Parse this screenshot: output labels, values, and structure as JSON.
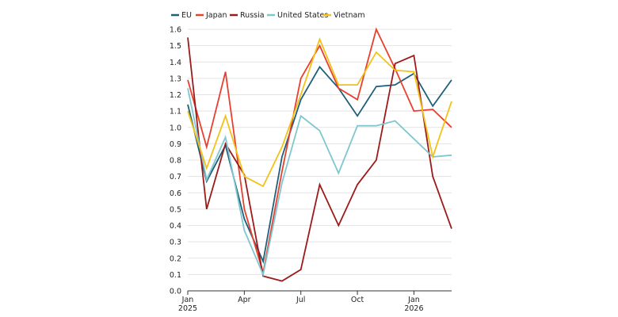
{
  "chart_data": {
    "type": "line",
    "title": "",
    "xlabel": "",
    "ylabel": "",
    "x": [
      "2025-01",
      "2025-02",
      "2025-03",
      "2025-04",
      "2025-05",
      "2025-06",
      "2025-07",
      "2025-08",
      "2025-09",
      "2025-10",
      "2025-11",
      "2025-12",
      "2026-01",
      "2026-02",
      "2026-03"
    ],
    "x_ticks": [
      {
        "label": "Jan",
        "sub": "2025",
        "index": 0
      },
      {
        "label": "Apr",
        "sub": "",
        "index": 3
      },
      {
        "label": "Jul",
        "sub": "",
        "index": 6
      },
      {
        "label": "Oct",
        "sub": "",
        "index": 9
      },
      {
        "label": "Jan",
        "sub": "2026",
        "index": 12
      }
    ],
    "ylim": [
      0,
      1.6
    ],
    "y_ticks": [
      "0.0",
      "0.1",
      "0.2",
      "0.3",
      "0.4",
      "0.5",
      "0.6",
      "0.7",
      "0.8",
      "0.9",
      "1.0",
      "1.1",
      "1.2",
      "1.3",
      "1.4",
      "1.5",
      "1.6"
    ],
    "grid": true,
    "legend_position": "top-left",
    "series": [
      {
        "name": "EU",
        "color": "#1f5f7a",
        "values": [
          1.14,
          0.67,
          0.89,
          0.44,
          0.18,
          0.82,
          1.17,
          1.37,
          1.24,
          1.07,
          1.25,
          1.26,
          1.33,
          1.13,
          1.29
        ]
      },
      {
        "name": "Japan",
        "color": "#e8402f",
        "values": [
          1.29,
          0.88,
          1.34,
          0.5,
          0.11,
          0.73,
          1.3,
          1.5,
          1.24,
          1.17,
          1.6,
          1.36,
          1.1,
          1.11,
          1.0
        ]
      },
      {
        "name": "Russia",
        "color": "#9b1b1b",
        "values": [
          1.55,
          0.5,
          0.9,
          0.71,
          0.09,
          0.06,
          0.13,
          0.65,
          0.4,
          0.65,
          0.8,
          1.39,
          1.44,
          0.7,
          0.38
        ]
      },
      {
        "name": "United States",
        "color": "#7fc7cf",
        "values": [
          1.24,
          0.68,
          0.94,
          0.37,
          0.1,
          0.66,
          1.07,
          0.98,
          0.72,
          1.01,
          1.01,
          1.04,
          0.93,
          0.82,
          0.83
        ]
      },
      {
        "name": "Vietnam",
        "color": "#f2c218",
        "values": [
          1.1,
          0.75,
          1.07,
          0.7,
          0.64,
          0.88,
          1.2,
          1.54,
          1.26,
          1.26,
          1.46,
          1.35,
          1.34,
          0.82,
          1.16
        ]
      }
    ]
  }
}
